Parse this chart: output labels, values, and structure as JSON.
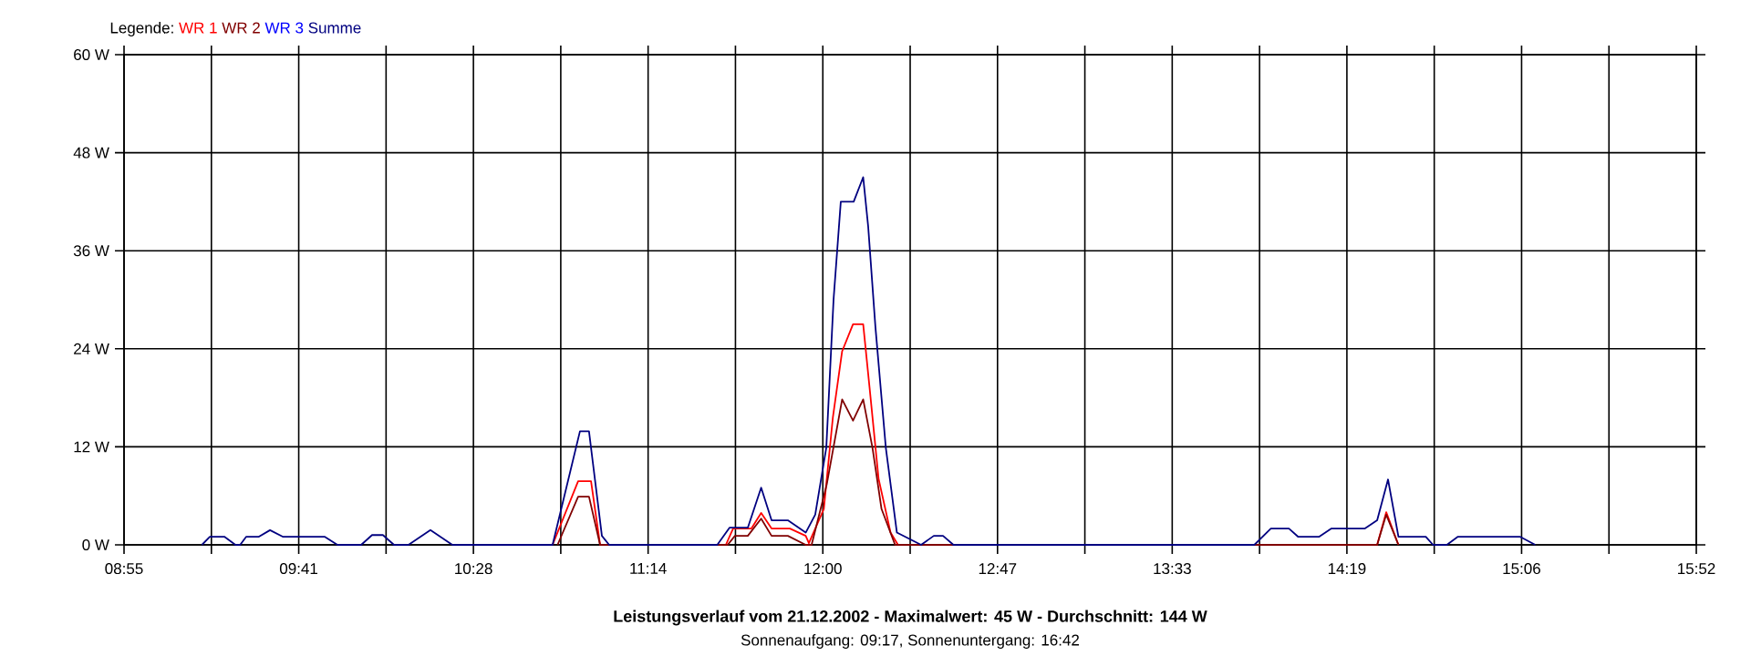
{
  "chart_data": {
    "type": "line",
    "title": "Leistungsverlauf vom 21.12.2002 - Maximalwert: 45 W - Durchschnitt: 144 W",
    "subtitle": "Sonnenaufgang: 09:17, Sonnenuntergang: 16:42",
    "legend_title": "Legende:",
    "legend": "top left",
    "grid": true,
    "line_style": "solid",
    "marker": "none",
    "xlim": [
      8.9167,
      15.8667
    ],
    "xticks": [
      {
        "value": 8.9167,
        "label": "08:55"
      },
      {
        "value": 9.3028,
        "label": null
      },
      {
        "value": 9.6889,
        "label": "09:41"
      },
      {
        "value": 10.075,
        "label": null
      },
      {
        "value": 10.4611,
        "label": "10:28"
      },
      {
        "value": 10.8472,
        "label": null
      },
      {
        "value": 11.2333,
        "label": "11:14"
      },
      {
        "value": 11.6194,
        "label": null
      },
      {
        "value": 12.0056,
        "label": "12:00"
      },
      {
        "value": 12.3917,
        "label": null
      },
      {
        "value": 12.7778,
        "label": "12:47"
      },
      {
        "value": 13.1639,
        "label": null
      },
      {
        "value": 13.55,
        "label": "13:33"
      },
      {
        "value": 13.9361,
        "label": null
      },
      {
        "value": 14.3222,
        "label": "14:19"
      },
      {
        "value": 14.7083,
        "label": null
      },
      {
        "value": 15.0944,
        "label": "15:06"
      },
      {
        "value": 15.4806,
        "label": null
      },
      {
        "value": 15.8667,
        "label": "15:52"
      }
    ],
    "ylim": [
      0,
      60
    ],
    "yticks": [
      {
        "value": 0,
        "label": "0 W"
      },
      {
        "value": 12,
        "label": "12 W"
      },
      {
        "value": 24,
        "label": "24 W"
      },
      {
        "value": 36,
        "label": "36 W"
      },
      {
        "value": 48,
        "label": "48 W"
      },
      {
        "value": 60,
        "label": "60 W"
      }
    ],
    "series": [
      {
        "name": "WR 1",
        "color": "#ff0000",
        "x": [
          10.811,
          10.924,
          10.981,
          11.021,
          11.577,
          11.609,
          11.69,
          11.733,
          11.779,
          11.86,
          11.93,
          11.944,
          12.01,
          12.05,
          12.091,
          12.139,
          12.184,
          12.212,
          12.252,
          12.305,
          12.338,
          14.456,
          14.496,
          14.55
        ],
        "values": [
          0,
          7.8,
          7.8,
          0,
          0,
          2,
          2,
          3.9,
          2,
          2,
          1.1,
          0.2,
          4.4,
          15.6,
          23.7,
          27,
          27,
          19.3,
          8.1,
          1.5,
          0,
          0,
          4,
          0
        ]
      },
      {
        "name": "WR 2",
        "color": "#800000",
        "x": [
          10.833,
          10.924,
          10.972,
          11.021,
          11.585,
          11.617,
          11.674,
          11.733,
          11.779,
          11.851,
          11.93,
          11.956,
          12.023,
          12.091,
          12.139,
          12.184,
          12.225,
          12.265,
          12.325,
          14.456,
          14.496,
          14.55
        ],
        "values": [
          0,
          5.9,
          5.9,
          0,
          0,
          1.1,
          1.1,
          3.2,
          1.1,
          1.1,
          0,
          0,
          7.4,
          17.8,
          15.2,
          17.8,
          11.9,
          4.4,
          0,
          0,
          3.7,
          0
        ]
      },
      {
        "name": "WR 3",
        "color": "#0000ff"
      },
      {
        "name": "Summe",
        "color": "#000080",
        "x": [
          9.261,
          9.296,
          9.36,
          9.409,
          9.43,
          9.457,
          9.513,
          9.562,
          9.618,
          9.803,
          9.86,
          9.965,
          10.013,
          10.061,
          10.11,
          10.174,
          10.271,
          10.368,
          10.811,
          10.932,
          10.972,
          11.029,
          11.061,
          11.539,
          11.593,
          11.674,
          11.733,
          11.779,
          11.851,
          11.93,
          11.972,
          12.021,
          12.053,
          12.085,
          12.142,
          12.184,
          12.206,
          12.238,
          12.284,
          12.333,
          12.44,
          12.496,
          12.537,
          12.583,
          13.913,
          13.986,
          14.066,
          14.106,
          14.2,
          14.254,
          14.402,
          14.456,
          14.504,
          14.55,
          14.671,
          14.703,
          14.764,
          14.813,
          15.087,
          15.155
        ],
        "values": [
          0,
          1,
          1,
          0,
          0,
          1,
          1,
          1.8,
          1,
          1,
          0,
          0,
          1.2,
          1.2,
          0,
          0,
          1.8,
          0,
          0,
          13.9,
          13.9,
          1.1,
          0,
          0,
          2.1,
          2.1,
          7,
          3,
          3,
          1.5,
          3.7,
          11.9,
          30,
          42,
          42,
          45,
          39,
          26.7,
          11.9,
          1.5,
          0,
          1.1,
          1.1,
          0,
          0,
          2,
          2,
          1,
          1,
          2,
          2,
          3,
          8,
          1,
          1,
          0,
          0,
          1,
          1,
          0
        ]
      }
    ]
  }
}
